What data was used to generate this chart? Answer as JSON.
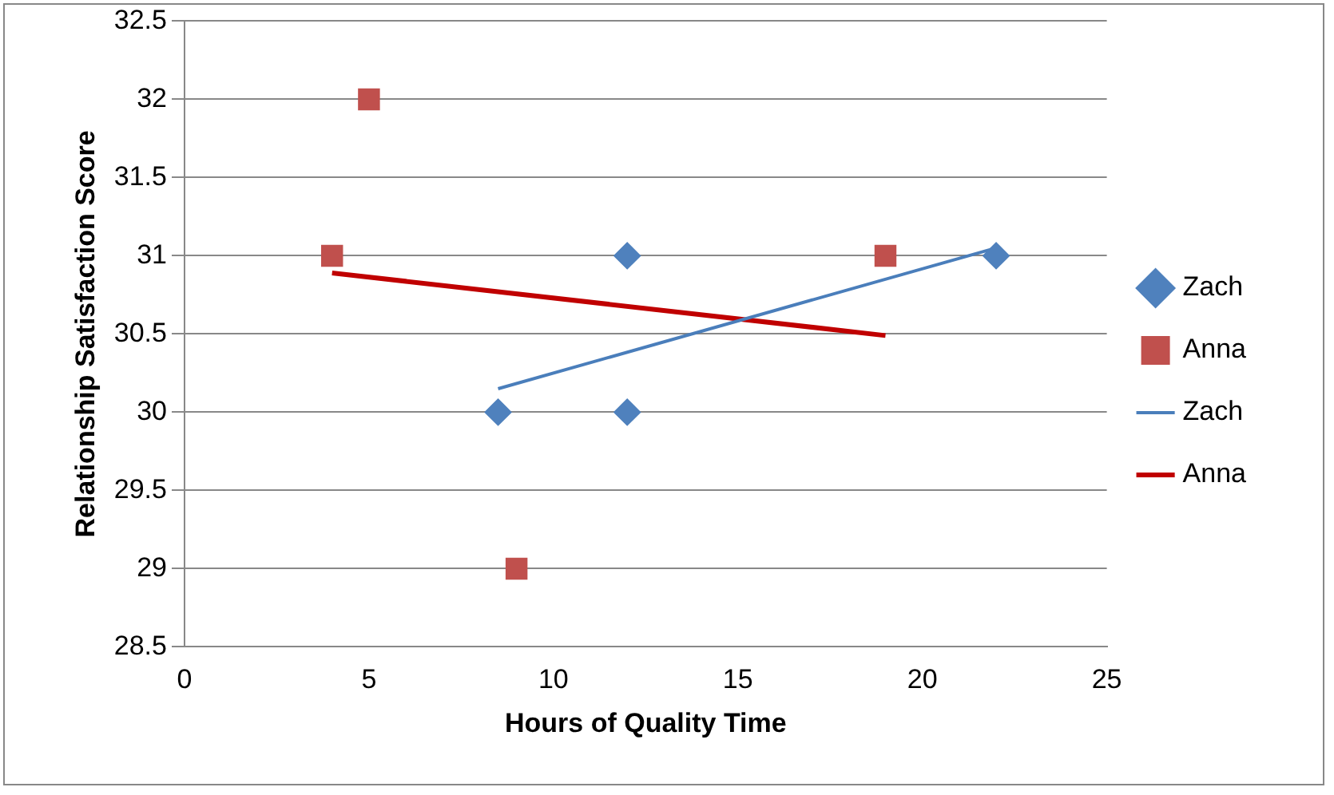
{
  "chart_data": {
    "type": "scatter",
    "xlabel": "Hours of Quality Time",
    "ylabel": "Relationship Satisfaction Score",
    "xlim": [
      0,
      25
    ],
    "xticks": [
      0,
      5,
      10,
      15,
      20,
      25
    ],
    "ylim": [
      28.5,
      32.5
    ],
    "yticks": [
      28.5,
      29,
      29.5,
      30,
      30.5,
      31,
      31.5,
      32,
      32.5
    ],
    "grid": "y",
    "legend": "right",
    "series": [
      {
        "name": "Zach",
        "marker": "diamond",
        "color": "#4f81bd",
        "x": [
          8.5,
          12,
          12,
          22
        ],
        "values": [
          30,
          31,
          30,
          31
        ]
      },
      {
        "name": "Anna",
        "marker": "square",
        "color": "#c0504d",
        "x": [
          4,
          5,
          9,
          19
        ],
        "values": [
          31,
          32,
          29,
          31
        ]
      },
      {
        "name": "Zach",
        "type": "line",
        "marker": "none",
        "color": "#4a7ebb",
        "x": [
          8.5,
          22
        ],
        "values": [
          30.15,
          31.05
        ]
      },
      {
        "name": "Anna",
        "type": "line",
        "marker": "none",
        "color": "#c00000",
        "x": [
          4,
          19
        ],
        "values": [
          30.89,
          30.49
        ]
      }
    ]
  }
}
